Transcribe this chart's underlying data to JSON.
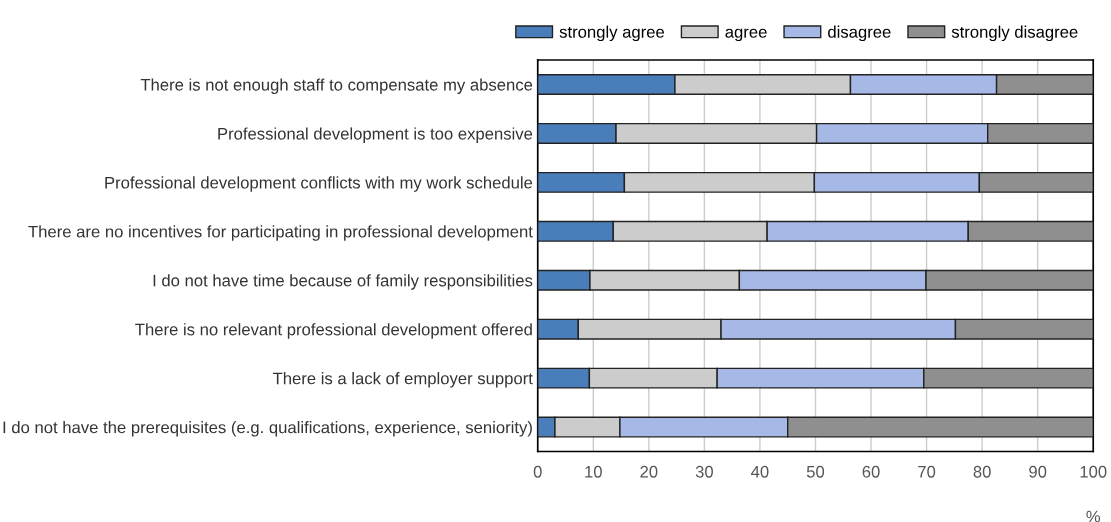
{
  "chart_data": {
    "type": "bar",
    "orientation": "horizontal",
    "stacked": true,
    "xlabel": "%",
    "categories": [
      "There is not enough staff to compensate my absence",
      "Professional development is too expensive",
      "Professional development conflicts with my work schedule",
      "There are no incentives for participating in professional development",
      "I do not have time because of family responsibilities",
      "There is no relevant professional development offered",
      "There is a lack of employer support",
      "I do not have the prerequisites (e.g. qualifications, experience, seniority)"
    ],
    "series": [
      {
        "name": "strongly agree",
        "color": "#4a7ebb",
        "values": [
          24.7,
          14.1,
          15.6,
          13.6,
          9.4,
          7.3,
          9.3,
          3.1
        ]
      },
      {
        "name": "agree",
        "color": "#cccccc",
        "values": [
          31.6,
          36.1,
          34.2,
          27.7,
          26.9,
          25.7,
          23.0,
          11.7
        ]
      },
      {
        "name": "disagree",
        "color": "#a6b8e6",
        "values": [
          26.3,
          30.8,
          29.7,
          36.2,
          33.6,
          42.2,
          37.2,
          30.2
        ]
      },
      {
        "name": "strongly disagree",
        "color": "#8f8f8f",
        "values": [
          17.4,
          19.0,
          20.5,
          22.5,
          30.1,
          24.8,
          30.5,
          55.0
        ]
      }
    ],
    "xlim": [
      0,
      100
    ],
    "xticks": [
      0,
      10,
      20,
      30,
      40,
      50,
      60,
      70,
      80,
      90,
      100
    ],
    "grid": "x",
    "legend": "top right"
  }
}
